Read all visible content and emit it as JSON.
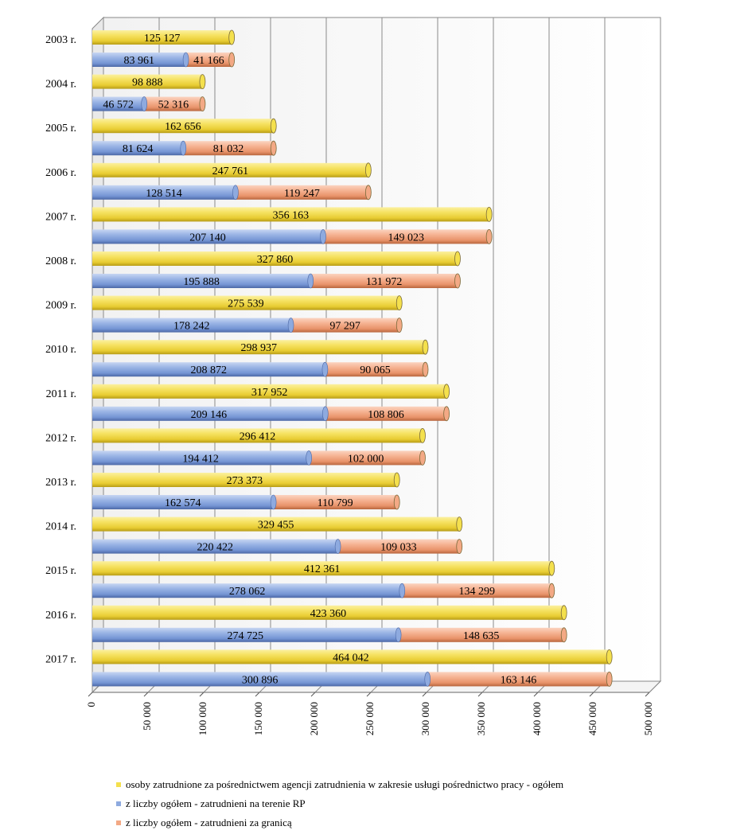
{
  "chart_data": {
    "type": "bar",
    "orientation": "horizontal",
    "style": "3d-cylinder",
    "categories": [
      "2003 r.",
      "2004 r.",
      "2005 r.",
      "2006 r.",
      "2007 r.",
      "2008 r.",
      "2009 r.",
      "2010 r.",
      "2011 r.",
      "2012 r.",
      "2013 r.",
      "2014 r.",
      "2015 r.",
      "2016 r.",
      "2017 r."
    ],
    "total": {
      "name": "osoby zatrudnione za pośrednictwem agencji zatrudnienia w zakresie usługi pośrednictwo pracy - ogółem",
      "color": "#f4e04d",
      "values": [
        125127,
        98888,
        162656,
        247761,
        356163,
        327860,
        275539,
        298937,
        317952,
        296412,
        273373,
        329455,
        412361,
        423360,
        464042
      ],
      "labels": [
        "125 127",
        "98 888",
        "162 656",
        "247 761",
        "356 163",
        "327 860",
        "275 539",
        "298 937",
        "317 952",
        "296 412",
        "273 373",
        "329 455",
        "412 361",
        "423 360",
        "464 042"
      ]
    },
    "stacked": [
      {
        "name": "z liczby ogółem - zatrudnieni na terenie RP",
        "color": "#8eaadf",
        "values": [
          83961,
          46572,
          81624,
          128514,
          207140,
          195888,
          178242,
          208872,
          209146,
          194412,
          162574,
          220422,
          278062,
          274725,
          300896
        ],
        "labels": [
          "83 961",
          "46 572",
          "81 624",
          "128 514",
          "207 140",
          "195 888",
          "178 242",
          "208 872",
          "209 146",
          "194 412",
          "162 574",
          "220 422",
          "278 062",
          "274 725",
          "300 896"
        ]
      },
      {
        "name": "z liczby ogółem - zatrudnieni za granicą",
        "color": "#f3a985",
        "values": [
          41166,
          52316,
          81032,
          119247,
          149023,
          131972,
          97297,
          90065,
          108806,
          102000,
          110799,
          109033,
          134299,
          148635,
          163146
        ],
        "labels": [
          "41 166",
          "52 316",
          "81 032",
          "119 247",
          "149 023",
          "131 972",
          "97 297",
          "90 065",
          "108 806",
          "102 000",
          "110 799",
          "109 033",
          "134 299",
          "148 635",
          "163 146"
        ]
      }
    ],
    "xlim": [
      0,
      500000
    ],
    "xticks": [
      0,
      50000,
      100000,
      150000,
      200000,
      250000,
      300000,
      350000,
      400000,
      450000,
      500000
    ],
    "xtick_labels": [
      "0",
      "50 000",
      "100 000",
      "150 000",
      "200 000",
      "250 000",
      "300 000",
      "350 000",
      "400 000",
      "450 000",
      "500 000"
    ],
    "grid": true,
    "legend_position": "bottom",
    "title": "",
    "xlabel": "",
    "ylabel": ""
  }
}
